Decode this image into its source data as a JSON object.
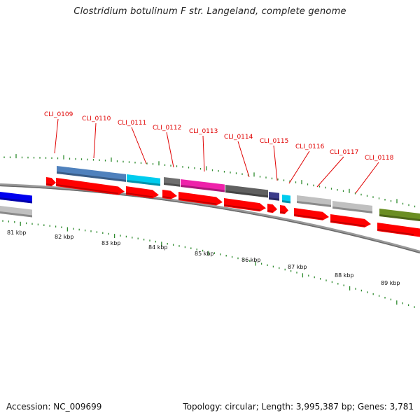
{
  "title": "Clostridium botulinum F str. Langeland, complete genome",
  "footer": {
    "accession": "Accession: NC_009699",
    "summary": "Topology: circular; Length: 3,995,387 bp; Genes: 3,781"
  },
  "gene_labels": [
    "CLI_0109",
    "CLI_0110",
    "CLI_0111",
    "CLI_0112",
    "CLI_0113",
    "CLI_0114",
    "CLI_0115",
    "CLI_0116",
    "CLI_0117",
    "CLI_0118"
  ],
  "kbp_labels": [
    "81 kbp",
    "82 kbp",
    "83 kbp",
    "84 kbp",
    "85 kbp",
    "86 kbp",
    "87 kbp",
    "88 kbp",
    "89 kbp"
  ],
  "colors": {
    "cds": "#ff0000",
    "backbone": "#888888",
    "tick": "#2e8b2e",
    "label": "#e00000",
    "feature_blue": "#0000ee",
    "feature_steelblue": "#4f81bd",
    "feature_cyan": "#00ccee",
    "feature_gray": "#6e6e6e",
    "feature_magenta": "#ee22aa",
    "feature_darkgray": "#606060",
    "feature_navy": "#3b3b8a",
    "feature_lightgray": "#c0c0c0",
    "feature_olive": "#6b8e23"
  }
}
